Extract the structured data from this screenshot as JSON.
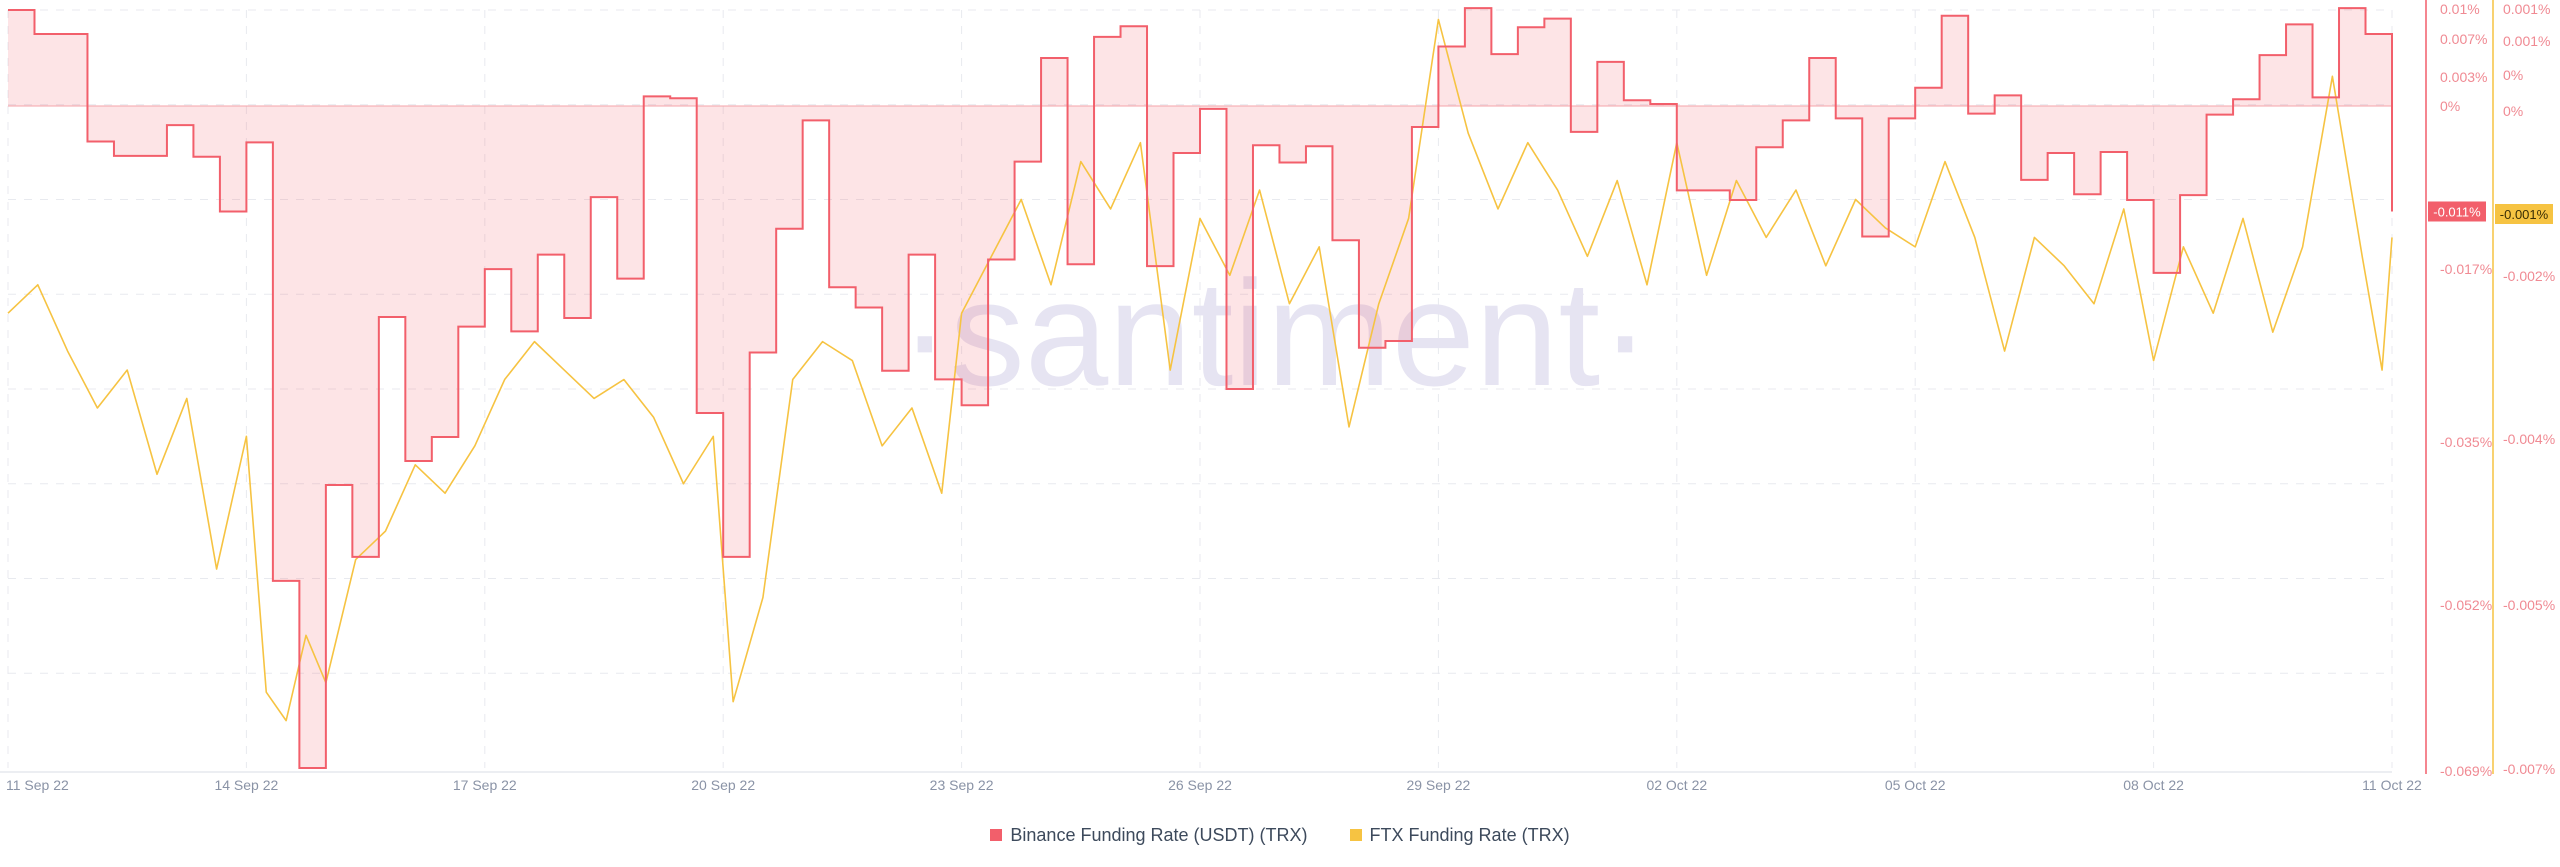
{
  "watermark": "·santiment·",
  "chart_data": {
    "type": "line",
    "x_start": "2022-09-11",
    "x_end": "2022-10-11",
    "x_ticks": [
      "11 Sep 22",
      "14 Sep 22",
      "17 Sep 22",
      "20 Sep 22",
      "23 Sep 22",
      "26 Sep 22",
      "29 Sep 22",
      "02 Oct 22",
      "05 Oct 22",
      "08 Oct 22",
      "11 Oct 22"
    ],
    "grid": true,
    "legend_position": "bottom-center",
    "axes": {
      "binance": {
        "ylim": [
          -0.069,
          0.01
        ],
        "ticks": [
          {
            "v": 0.01,
            "label": "0.01%"
          },
          {
            "v": 0.007,
            "label": "0.007%"
          },
          {
            "v": 0.003,
            "label": "0.003%"
          },
          {
            "v": 0.0,
            "label": "0%"
          },
          {
            "v": -0.017,
            "label": "-0.017%"
          },
          {
            "v": -0.035,
            "label": "-0.035%"
          },
          {
            "v": -0.052,
            "label": "-0.052%"
          },
          {
            "v": -0.069,
            "label": "-0.069%"
          }
        ],
        "color": "#f25f6b"
      },
      "ftx": {
        "ylim": [
          -0.007,
          0.001
        ],
        "ticks": [
          {
            "v": 0.001,
            "label": "0.001%"
          },
          {
            "v": 0.00078,
            "label": "0.001%"
          },
          {
            "v": 0.00057,
            "label": "0%"
          },
          {
            "v": 0.00037,
            "label": "0%"
          },
          {
            "v": -0.002,
            "label": "-0.002%"
          },
          {
            "v": -0.004,
            "label": "-0.004%"
          },
          {
            "v": -0.005,
            "label": "-0.005%"
          },
          {
            "v": -0.007,
            "label": "-0.007%"
          }
        ],
        "color": "#f6c342"
      }
    },
    "series": [
      {
        "name": "Binance Funding Rate (USDT) (TRX)",
        "axis": "binance",
        "color": "#f25f6b",
        "last_value_label": "-0.011%",
        "step": true,
        "points": [
          [
            "2022-09-11T00:00",
            0.01
          ],
          [
            "2022-09-11T08:00",
            0.0075
          ],
          [
            "2022-09-12T00:00",
            -0.0037
          ],
          [
            "2022-09-12T08:00",
            -0.0052
          ],
          [
            "2022-09-12T16:00",
            -0.0052
          ],
          [
            "2022-09-13T00:00",
            -0.002
          ],
          [
            "2022-09-13T08:00",
            -0.0053
          ],
          [
            "2022-09-13T16:00",
            -0.011
          ],
          [
            "2022-09-14T00:00",
            -0.0038
          ],
          [
            "2022-09-14T08:00",
            -0.0495
          ],
          [
            "2022-09-14T16:00",
            -0.069
          ],
          [
            "2022-09-15T00:00",
            -0.0395
          ],
          [
            "2022-09-15T08:00",
            -0.047
          ],
          [
            "2022-09-15T16:00",
            -0.022
          ],
          [
            "2022-09-16T00:00",
            -0.037
          ],
          [
            "2022-09-16T08:00",
            -0.0345
          ],
          [
            "2022-09-16T16:00",
            -0.023
          ],
          [
            "2022-09-17T00:00",
            -0.017
          ],
          [
            "2022-09-17T08:00",
            -0.0235
          ],
          [
            "2022-09-17T16:00",
            -0.0155
          ],
          [
            "2022-09-18T00:00",
            -0.0221
          ],
          [
            "2022-09-18T08:00",
            -0.0095
          ],
          [
            "2022-09-18T16:00",
            -0.018
          ],
          [
            "2022-09-19T00:00",
            0.001
          ],
          [
            "2022-09-19T08:00",
            0.0008
          ],
          [
            "2022-09-19T16:00",
            -0.032
          ],
          [
            "2022-09-20T00:00",
            -0.047
          ],
          [
            "2022-09-20T08:00",
            -0.0257
          ],
          [
            "2022-09-20T16:00",
            -0.0128
          ],
          [
            "2022-09-21T00:00",
            -0.0015
          ],
          [
            "2022-09-21T08:00",
            -0.0189
          ],
          [
            "2022-09-21T16:00",
            -0.021
          ],
          [
            "2022-09-22T00:00",
            -0.0276
          ],
          [
            "2022-09-22T08:00",
            -0.0155
          ],
          [
            "2022-09-22T16:00",
            -0.0285
          ],
          [
            "2022-09-23T00:00",
            -0.0312
          ],
          [
            "2022-09-23T08:00",
            -0.016
          ],
          [
            "2022-09-23T16:00",
            -0.0058
          ],
          [
            "2022-09-24T00:00",
            0.005
          ],
          [
            "2022-09-24T08:00",
            -0.0165
          ],
          [
            "2022-09-24T16:00",
            0.0072
          ],
          [
            "2022-09-25T00:00",
            0.0083
          ],
          [
            "2022-09-25T08:00",
            -0.0167
          ],
          [
            "2022-09-25T16:00",
            -0.0049
          ],
          [
            "2022-09-26T00:00",
            -0.0003
          ],
          [
            "2022-09-26T08:00",
            -0.0295
          ],
          [
            "2022-09-26T16:00",
            -0.0041
          ],
          [
            "2022-09-27T00:00",
            -0.0059
          ],
          [
            "2022-09-27T08:00",
            -0.0042
          ],
          [
            "2022-09-27T16:00",
            -0.014
          ],
          [
            "2022-09-28T00:00",
            -0.0252
          ],
          [
            "2022-09-28T08:00",
            -0.0245
          ],
          [
            "2022-09-28T16:00",
            -0.0022
          ],
          [
            "2022-09-29T00:00",
            0.0062
          ],
          [
            "2022-09-29T08:00",
            0.0102
          ],
          [
            "2022-09-29T16:00",
            0.0054
          ],
          [
            "2022-09-30T00:00",
            0.0082
          ],
          [
            "2022-09-30T08:00",
            0.0091
          ],
          [
            "2022-09-30T16:00",
            -0.0027
          ],
          [
            "2022-10-01T00:00",
            0.0046
          ],
          [
            "2022-10-01T08:00",
            0.0006
          ],
          [
            "2022-10-01T16:00",
            0.0002
          ],
          [
            "2022-10-02T00:00",
            -0.0088
          ],
          [
            "2022-10-02T08:00",
            -0.0088
          ],
          [
            "2022-10-02T16:00",
            -0.0098
          ],
          [
            "2022-10-03T00:00",
            -0.0043
          ],
          [
            "2022-10-03T08:00",
            -0.0015
          ],
          [
            "2022-10-03T16:00",
            0.005
          ],
          [
            "2022-10-04T00:00",
            -0.0013
          ],
          [
            "2022-10-04T08:00",
            -0.0136
          ],
          [
            "2022-10-04T16:00",
            -0.0013
          ],
          [
            "2022-10-05T00:00",
            0.0019
          ],
          [
            "2022-10-05T08:00",
            0.0094
          ],
          [
            "2022-10-05T16:00",
            -0.0008
          ],
          [
            "2022-10-06T00:00",
            0.0011
          ],
          [
            "2022-10-06T08:00",
            -0.0077
          ],
          [
            "2022-10-06T16:00",
            -0.0049
          ],
          [
            "2022-10-07T00:00",
            -0.0092
          ],
          [
            "2022-10-07T08:00",
            -0.0048
          ],
          [
            "2022-10-07T16:00",
            -0.0098
          ],
          [
            "2022-10-08T00:00",
            -0.0174
          ],
          [
            "2022-10-08T08:00",
            -0.0093
          ],
          [
            "2022-10-08T16:00",
            -0.0009
          ],
          [
            "2022-10-09T00:00",
            0.0007
          ],
          [
            "2022-10-09T08:00",
            0.0053
          ],
          [
            "2022-10-09T16:00",
            0.0085
          ],
          [
            "2022-10-10T00:00",
            0.0009
          ],
          [
            "2022-10-10T08:00",
            0.0102
          ],
          [
            "2022-10-10T16:00",
            0.0075
          ],
          [
            "2022-10-11T00:00",
            -0.011
          ]
        ]
      },
      {
        "name": "FTX Funding Rate (TRX)",
        "axis": "ftx",
        "color": "#f6c342",
        "last_value_label": "-0.001%",
        "step": false,
        "points": [
          [
            "2022-09-11T00:00",
            -0.0022
          ],
          [
            "2022-09-11T09:00",
            -0.0019
          ],
          [
            "2022-09-11T18:00",
            -0.0026
          ],
          [
            "2022-09-12T03:00",
            -0.0032
          ],
          [
            "2022-09-12T12:00",
            -0.0028
          ],
          [
            "2022-09-12T21:00",
            -0.0039
          ],
          [
            "2022-09-13T06:00",
            -0.0031
          ],
          [
            "2022-09-13T15:00",
            -0.0049
          ],
          [
            "2022-09-14T00:00",
            -0.0035
          ],
          [
            "2022-09-14T06:00",
            -0.0062
          ],
          [
            "2022-09-14T12:00",
            -0.0065
          ],
          [
            "2022-09-14T18:00",
            -0.0056
          ],
          [
            "2022-09-15T00:00",
            -0.0061
          ],
          [
            "2022-09-15T09:00",
            -0.0048
          ],
          [
            "2022-09-15T18:00",
            -0.0045
          ],
          [
            "2022-09-16T03:00",
            -0.0038
          ],
          [
            "2022-09-16T12:00",
            -0.0041
          ],
          [
            "2022-09-16T21:00",
            -0.0036
          ],
          [
            "2022-09-17T06:00",
            -0.0029
          ],
          [
            "2022-09-17T15:00",
            -0.0025
          ],
          [
            "2022-09-18T00:00",
            -0.0028
          ],
          [
            "2022-09-18T09:00",
            -0.0031
          ],
          [
            "2022-09-18T18:00",
            -0.0029
          ],
          [
            "2022-09-19T03:00",
            -0.0033
          ],
          [
            "2022-09-19T12:00",
            -0.004
          ],
          [
            "2022-09-19T21:00",
            -0.0035
          ],
          [
            "2022-09-20T03:00",
            -0.0063
          ],
          [
            "2022-09-20T12:00",
            -0.0052
          ],
          [
            "2022-09-20T21:00",
            -0.0029
          ],
          [
            "2022-09-21T06:00",
            -0.0025
          ],
          [
            "2022-09-21T15:00",
            -0.0027
          ],
          [
            "2022-09-22T00:00",
            -0.0036
          ],
          [
            "2022-09-22T09:00",
            -0.0032
          ],
          [
            "2022-09-22T18:00",
            -0.0041
          ],
          [
            "2022-09-23T00:00",
            -0.0022
          ],
          [
            "2022-09-23T09:00",
            -0.0016
          ],
          [
            "2022-09-23T18:00",
            -0.001
          ],
          [
            "2022-09-24T03:00",
            -0.0019
          ],
          [
            "2022-09-24T12:00",
            -0.0006
          ],
          [
            "2022-09-24T21:00",
            -0.0011
          ],
          [
            "2022-09-25T06:00",
            -0.0004
          ],
          [
            "2022-09-25T15:00",
            -0.0028
          ],
          [
            "2022-09-26T00:00",
            -0.0012
          ],
          [
            "2022-09-26T09:00",
            -0.0018
          ],
          [
            "2022-09-26T18:00",
            -0.0009
          ],
          [
            "2022-09-27T03:00",
            -0.0021
          ],
          [
            "2022-09-27T12:00",
            -0.0015
          ],
          [
            "2022-09-27T21:00",
            -0.0034
          ],
          [
            "2022-09-28T06:00",
            -0.0021
          ],
          [
            "2022-09-28T15:00",
            -0.0012
          ],
          [
            "2022-09-29T00:00",
            0.0009
          ],
          [
            "2022-09-29T09:00",
            -0.0003
          ],
          [
            "2022-09-29T18:00",
            -0.0011
          ],
          [
            "2022-09-30T03:00",
            -0.0004
          ],
          [
            "2022-09-30T12:00",
            -0.0009
          ],
          [
            "2022-09-30T21:00",
            -0.0016
          ],
          [
            "2022-10-01T06:00",
            -0.0008
          ],
          [
            "2022-10-01T15:00",
            -0.0019
          ],
          [
            "2022-10-02T00:00",
            -0.0004
          ],
          [
            "2022-10-02T09:00",
            -0.0018
          ],
          [
            "2022-10-02T18:00",
            -0.0008
          ],
          [
            "2022-10-03T03:00",
            -0.0014
          ],
          [
            "2022-10-03T12:00",
            -0.0009
          ],
          [
            "2022-10-03T21:00",
            -0.0017
          ],
          [
            "2022-10-04T06:00",
            -0.001
          ],
          [
            "2022-10-04T15:00",
            -0.0013
          ],
          [
            "2022-10-05T00:00",
            -0.0015
          ],
          [
            "2022-10-05T09:00",
            -0.0006
          ],
          [
            "2022-10-05T18:00",
            -0.0014
          ],
          [
            "2022-10-06T03:00",
            -0.0026
          ],
          [
            "2022-10-06T12:00",
            -0.0014
          ],
          [
            "2022-10-06T21:00",
            -0.0017
          ],
          [
            "2022-10-07T06:00",
            -0.0021
          ],
          [
            "2022-10-07T15:00",
            -0.0011
          ],
          [
            "2022-10-08T00:00",
            -0.0027
          ],
          [
            "2022-10-08T09:00",
            -0.0015
          ],
          [
            "2022-10-08T18:00",
            -0.0022
          ],
          [
            "2022-10-09T03:00",
            -0.0012
          ],
          [
            "2022-10-09T12:00",
            -0.0024
          ],
          [
            "2022-10-09T21:00",
            -0.0015
          ],
          [
            "2022-10-10T06:00",
            0.0003
          ],
          [
            "2022-10-10T15:00",
            -0.0016
          ],
          [
            "2022-10-10T21:00",
            -0.0028
          ],
          [
            "2022-10-11T00:00",
            -0.0014
          ]
        ]
      }
    ]
  }
}
